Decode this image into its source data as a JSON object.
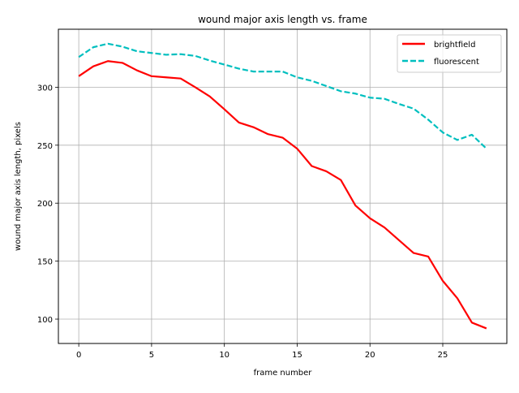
{
  "chart_data": {
    "type": "line",
    "title": "wound major axis length vs. frame",
    "xlabel": "frame number",
    "ylabel": "wound major axis length, pixels",
    "xlim": [
      -1.4,
      29.4
    ],
    "ylim": [
      79,
      350
    ],
    "xticks": [
      0,
      5,
      10,
      15,
      20,
      25
    ],
    "yticks": [
      100,
      150,
      200,
      250,
      300
    ],
    "grid": true,
    "legend_position": "top-right",
    "x": [
      0,
      1,
      2,
      3,
      4,
      5,
      6,
      7,
      8,
      9,
      10,
      11,
      12,
      13,
      14,
      15,
      16,
      17,
      18,
      19,
      20,
      21,
      22,
      23,
      24,
      25,
      26,
      27,
      28
    ],
    "series": [
      {
        "name": "brightfield",
        "color": "#ff0000",
        "style": "solid",
        "values": [
          309.5,
          318,
          322.5,
          321,
          314.5,
          309.5,
          308.5,
          307.5,
          300,
          292,
          281,
          269.5,
          265.5,
          259.5,
          256.5,
          247,
          232,
          227.5,
          220,
          198,
          187,
          179,
          168,
          157,
          154,
          133,
          118,
          97,
          92
        ]
      },
      {
        "name": "fluorescent",
        "color": "#00bfbf",
        "style": "dashed",
        "values": [
          326,
          334.5,
          337.5,
          335,
          331,
          329.5,
          328,
          328.5,
          327,
          323,
          319.5,
          316,
          313.5,
          313.5,
          313.5,
          308.5,
          305.5,
          301,
          296.5,
          294.5,
          291,
          290,
          285.5,
          281.5,
          272,
          261,
          254.5,
          259,
          247
        ]
      }
    ]
  }
}
